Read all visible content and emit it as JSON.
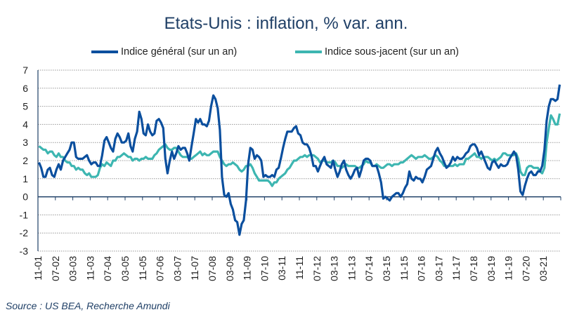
{
  "chart_data": {
    "type": "line",
    "title": "Etats-Unis : inflation, % var. ann.",
    "frequency": "monthly",
    "x_range": [
      "11-01",
      "10-21"
    ],
    "x_tick_labels": [
      "11-01",
      "07-02",
      "03-03",
      "11-03",
      "07-04",
      "03-05",
      "11-05",
      "07-06",
      "03-07",
      "11-07",
      "07-08",
      "03-09",
      "11-09",
      "07-10",
      "03-11",
      "11-11",
      "07-12",
      "03-13",
      "11-13",
      "07-14",
      "03-15",
      "11-15",
      "07-16",
      "03-17",
      "11-17",
      "07-18",
      "03-19",
      "11-19",
      "07-20",
      "03-21"
    ],
    "ylim": [
      -3,
      7
    ],
    "y_ticks": [
      -3,
      -2,
      -1,
      0,
      1,
      2,
      3,
      4,
      5,
      6,
      7
    ],
    "grid": "horizontal dotted",
    "legend_position": "top",
    "series": [
      {
        "name": "Indice général (sur un an)",
        "color": "#0b4f9e",
        "values": [
          1.9,
          1.6,
          1.1,
          1.1,
          1.5,
          1.6,
          1.2,
          1.1,
          1.5,
          1.8,
          1.5,
          2.0,
          2.2,
          2.4,
          2.6,
          3.0,
          3.0,
          2.2,
          2.1,
          2.1,
          2.1,
          2.2,
          2.3,
          2.0,
          1.8,
          1.9,
          1.9,
          1.7,
          1.7,
          2.3,
          3.1,
          3.3,
          3.0,
          2.7,
          2.5,
          3.2,
          3.5,
          3.3,
          3.0,
          3.0,
          3.1,
          3.5,
          2.8,
          2.5,
          3.2,
          3.6,
          4.7,
          4.3,
          3.5,
          3.4,
          4.0,
          3.6,
          3.4,
          3.5,
          4.2,
          4.3,
          4.1,
          3.8,
          2.1,
          1.3,
          2.0,
          2.5,
          2.1,
          2.4,
          2.8,
          2.6,
          2.7,
          2.7,
          2.4,
          2.0,
          2.8,
          3.5,
          4.3,
          4.1,
          4.3,
          4.0,
          4.0,
          3.9,
          4.2,
          5.0,
          5.6,
          5.4,
          4.9,
          3.7,
          1.1,
          0.1,
          0.0,
          0.2,
          -0.4,
          -0.7,
          -1.3,
          -1.4,
          -2.1,
          -1.5,
          -1.3,
          -0.2,
          1.8,
          2.7,
          2.6,
          2.1,
          2.3,
          2.2,
          2.0,
          1.1,
          1.2,
          1.1,
          1.1,
          1.2,
          1.1,
          1.5,
          1.6,
          2.1,
          2.7,
          3.2,
          3.6,
          3.6,
          3.6,
          3.8,
          3.9,
          3.5,
          3.4,
          3.0,
          2.9,
          2.9,
          2.7,
          2.3,
          1.7,
          1.7,
          1.4,
          1.7,
          2.0,
          2.2,
          1.8,
          1.7,
          1.6,
          2.0,
          1.5,
          1.1,
          1.4,
          1.8,
          2.0,
          1.5,
          1.2,
          1.0,
          1.2,
          1.5,
          1.6,
          1.1,
          1.5,
          2.0,
          2.1,
          2.1,
          2.0,
          1.7,
          1.7,
          1.7,
          1.3,
          0.8,
          -0.1,
          0.0,
          -0.1,
          -0.2,
          0.0,
          0.1,
          0.2,
          0.2,
          0.0,
          0.2,
          0.5,
          0.7,
          1.4,
          1.0,
          0.9,
          1.1,
          1.0,
          1.0,
          0.8,
          1.1,
          1.5,
          1.6,
          1.7,
          2.1,
          2.5,
          2.7,
          2.4,
          2.2,
          1.9,
          1.6,
          1.7,
          1.9,
          2.2,
          2.0,
          2.2,
          2.1,
          2.1,
          2.2,
          2.4,
          2.5,
          2.8,
          2.9,
          2.9,
          2.7,
          2.3,
          2.5,
          2.2,
          1.9,
          1.6,
          1.5,
          1.9,
          2.0,
          1.8,
          1.6,
          1.8,
          1.7,
          1.7,
          1.8,
          2.1,
          2.3,
          2.5,
          2.3,
          1.5,
          0.3,
          0.1,
          0.6,
          1.0,
          1.3,
          1.4,
          1.2,
          1.2,
          1.4,
          1.4,
          1.7,
          2.6,
          4.2,
          5.0,
          5.4,
          5.4,
          5.3,
          5.4,
          6.2
        ]
      },
      {
        "name": "Indice sous-jacent (sur un an)",
        "color": "#3db6b1",
        "values": [
          2.8,
          2.7,
          2.6,
          2.6,
          2.4,
          2.5,
          2.5,
          2.3,
          2.2,
          2.4,
          2.2,
          2.2,
          2.0,
          1.9,
          1.9,
          1.7,
          1.7,
          1.5,
          1.6,
          1.5,
          1.5,
          1.3,
          1.2,
          1.3,
          1.1,
          1.1,
          1.1,
          1.2,
          1.6,
          1.8,
          1.7,
          1.9,
          1.8,
          1.7,
          2.0,
          2.0,
          2.2,
          2.2,
          2.3,
          2.4,
          2.3,
          2.2,
          2.2,
          2.0,
          2.1,
          2.1,
          2.0,
          2.1,
          2.1,
          2.2,
          2.1,
          2.1,
          2.1,
          2.3,
          2.4,
          2.6,
          2.7,
          2.8,
          2.9,
          2.7,
          2.6,
          2.6,
          2.7,
          2.7,
          2.5,
          2.3,
          2.2,
          2.2,
          2.2,
          2.1,
          2.1,
          2.2,
          2.3,
          2.4,
          2.5,
          2.3,
          2.4,
          2.3,
          2.3,
          2.4,
          2.5,
          2.5,
          2.5,
          2.2,
          2.0,
          1.8,
          1.7,
          1.8,
          1.8,
          1.9,
          1.8,
          1.7,
          1.5,
          1.4,
          1.5,
          1.7,
          1.7,
          1.8,
          1.6,
          1.3,
          1.1,
          0.9,
          0.9,
          0.9,
          0.9,
          0.9,
          0.8,
          0.6,
          0.8,
          0.8,
          1.0,
          1.1,
          1.2,
          1.3,
          1.5,
          1.6,
          1.8,
          2.0,
          2.0,
          2.1,
          2.2,
          2.2,
          2.3,
          2.2,
          2.3,
          2.3,
          2.3,
          2.2,
          2.1,
          1.9,
          2.0,
          2.0,
          1.9,
          1.9,
          1.9,
          2.0,
          1.9,
          1.7,
          1.7,
          1.6,
          1.7,
          1.8,
          1.7,
          1.7,
          1.7,
          1.7,
          1.6,
          1.6,
          1.7,
          1.8,
          2.0,
          1.9,
          1.9,
          1.7,
          1.7,
          1.8,
          1.7,
          1.6,
          1.6,
          1.7,
          1.8,
          1.8,
          1.7,
          1.8,
          1.8,
          1.8,
          1.9,
          1.9,
          2.0,
          2.1,
          2.2,
          2.3,
          2.2,
          2.1,
          2.2,
          2.2,
          2.2,
          2.3,
          2.2,
          2.1,
          2.1,
          2.2,
          2.3,
          2.2,
          2.0,
          1.9,
          1.7,
          1.7,
          1.7,
          1.7,
          1.7,
          1.8,
          1.7,
          1.8,
          1.8,
          1.8,
          2.1,
          2.1,
          2.2,
          2.3,
          2.4,
          2.2,
          2.2,
          2.1,
          2.2,
          2.2,
          2.2,
          2.1,
          2.0,
          2.1,
          2.0,
          2.1,
          2.2,
          2.4,
          2.4,
          2.3,
          2.3,
          2.3,
          2.3,
          2.4,
          2.1,
          1.4,
          1.2,
          1.2,
          1.6,
          1.7,
          1.7,
          1.6,
          1.6,
          1.6,
          1.4,
          1.3,
          1.6,
          3.0,
          3.8,
          4.5,
          4.3,
          4.0,
          4.0,
          4.6
        ]
      }
    ],
    "source": "Source : US BEA, Recherche Amundi"
  }
}
